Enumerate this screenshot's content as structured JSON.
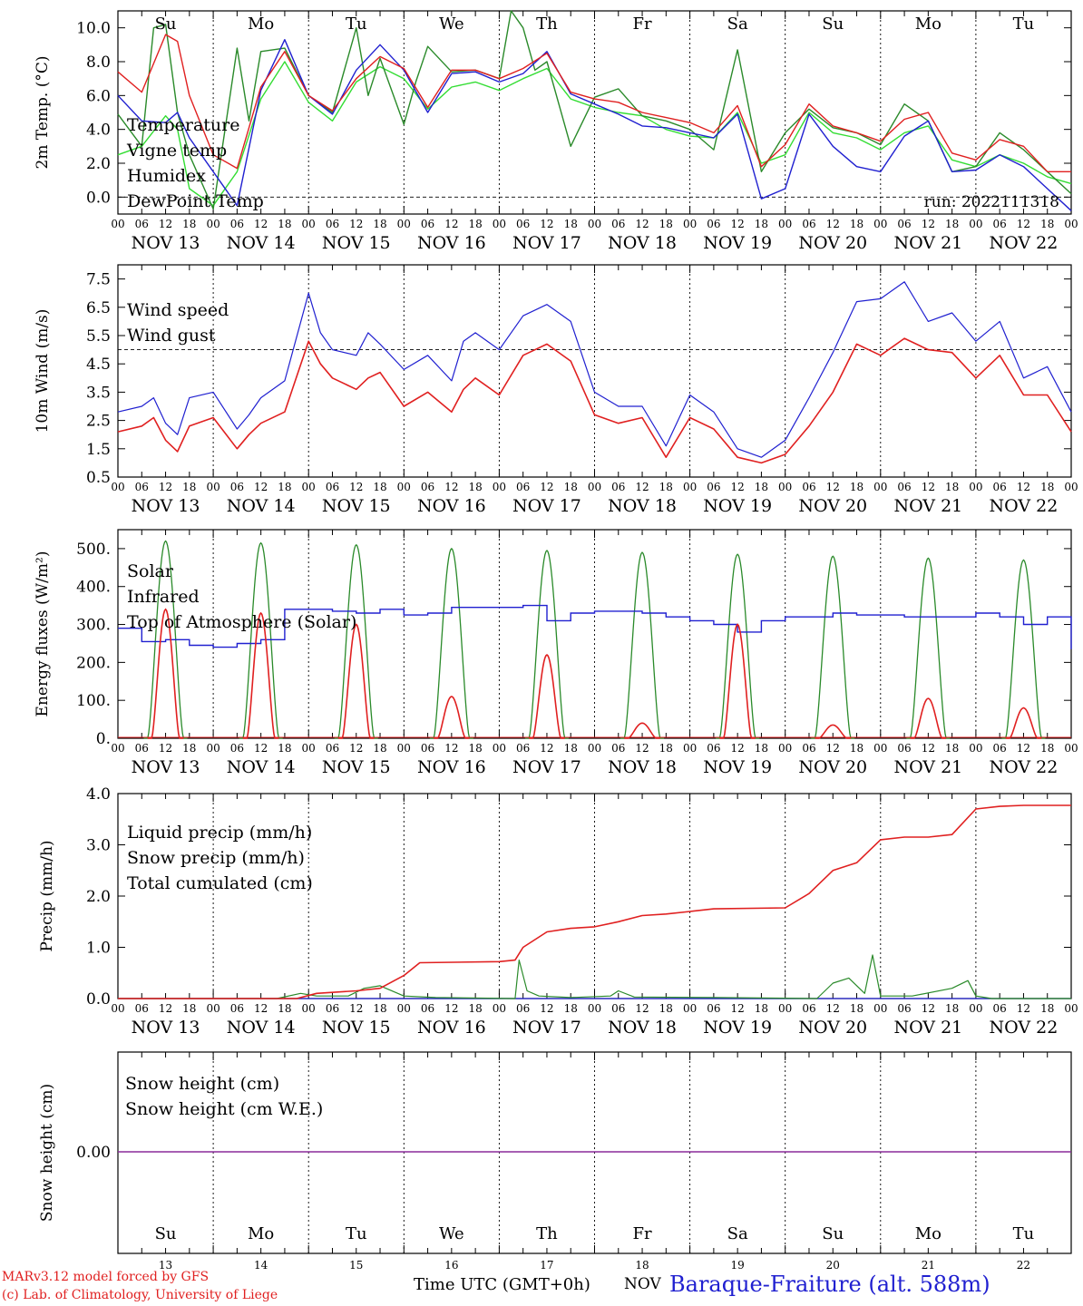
{
  "days": {
    "abbrev": [
      "Su",
      "Mo",
      "Tu",
      "We",
      "Th",
      "Fr",
      "Sa",
      "Su",
      "Mo",
      "Tu"
    ],
    "abbrev_colors": [
      "#e02020",
      "#000000",
      "#000000",
      "#000000",
      "#000000",
      "#000000",
      "#e02020",
      "#e02020",
      "#000000",
      "#000000"
    ],
    "dates": [
      "NOV 13",
      "NOV 14",
      "NOV 15",
      "NOV 16",
      "NOV 17",
      "NOV 18",
      "NOV 19",
      "NOV 20",
      "NOV 21",
      "NOV 22"
    ],
    "day_numbers": [
      "13",
      "14",
      "15",
      "16",
      "17",
      "18",
      "19",
      "20",
      "21",
      "22"
    ],
    "hour_ticks": [
      "00",
      "06",
      "12",
      "18"
    ],
    "end_tick": "00"
  },
  "footer": {
    "model_line": "MARv3.12 model forced by GFS",
    "credit_line": "(c) Lab. of Climatology, University of Liege",
    "xlabel": "Time UTC (GMT+0h)",
    "month": "NOV",
    "station": "Baraque-Fraiture (alt. 588m)"
  },
  "chart_data": [
    {
      "type": "line",
      "ylabel": "2m Temp. (°C)",
      "run_label": "run: 2022111318",
      "ylim": [
        -1.0,
        11.0
      ],
      "yticks": [
        "0.0",
        "2.0",
        "4.0",
        "6.0",
        "8.0",
        "10.0"
      ],
      "reference_line": 0.0,
      "x_unit": "hours since NOV 13 00 UTC",
      "series": [
        {
          "name": "Temperature",
          "color": "#e02020",
          "x": [
            0,
            6,
            12,
            15,
            18,
            24,
            30,
            36,
            42,
            48,
            54,
            60,
            66,
            72,
            78,
            84,
            90,
            96,
            102,
            108,
            114,
            120,
            126,
            132,
            138,
            144,
            150,
            156,
            162,
            168,
            174,
            180,
            186,
            192,
            198,
            204,
            210,
            216,
            222,
            228,
            234,
            240
          ],
          "y": [
            7.4,
            6.2,
            9.6,
            9.2,
            6.0,
            2.5,
            1.7,
            6.5,
            8.6,
            6.0,
            5.1,
            7.0,
            8.3,
            7.6,
            5.3,
            7.5,
            7.5,
            7.0,
            7.6,
            8.5,
            6.2,
            5.8,
            5.6,
            5.0,
            4.7,
            4.4,
            3.8,
            5.4,
            1.8,
            3.1,
            5.5,
            4.2,
            3.8,
            3.3,
            4.6,
            5.0,
            2.6,
            2.2,
            3.4,
            3.0,
            1.5,
            1.5
          ]
        },
        {
          "name": "Vigne temp",
          "color": "#2a8a2a",
          "x": [
            0,
            6,
            9,
            12,
            15,
            18,
            24,
            30,
            33,
            36,
            42,
            48,
            54,
            60,
            63,
            66,
            72,
            75,
            78,
            84,
            90,
            96,
            99,
            102,
            105,
            108,
            114,
            120,
            126,
            132,
            138,
            144,
            150,
            156,
            162,
            168,
            174,
            180,
            186,
            192,
            198,
            204,
            210,
            216,
            222,
            228,
            234,
            240
          ],
          "y": [
            4.9,
            3.0,
            10.0,
            10.2,
            5.0,
            2.5,
            -0.7,
            8.8,
            4.5,
            8.6,
            8.8,
            6.0,
            5.0,
            10.0,
            6.0,
            8.2,
            4.3,
            6.8,
            8.9,
            7.4,
            7.5,
            7.0,
            11.0,
            10.0,
            7.5,
            8.0,
            3.0,
            5.9,
            6.4,
            4.8,
            4.5,
            4.0,
            2.8,
            8.7,
            1.5,
            3.8,
            5.2,
            4.1,
            3.8,
            3.1,
            5.5,
            4.5,
            1.5,
            1.8,
            3.8,
            2.8,
            1.5,
            0.2
          ]
        },
        {
          "name": "Humidex",
          "color": "#2020d0",
          "x": [
            0,
            6,
            12,
            15,
            18,
            24,
            30,
            36,
            42,
            48,
            54,
            60,
            66,
            72,
            78,
            84,
            90,
            96,
            102,
            108,
            114,
            120,
            126,
            132,
            138,
            144,
            150,
            156,
            162,
            168,
            174,
            180,
            186,
            192,
            198,
            204,
            210,
            216,
            222,
            228,
            234,
            240
          ],
          "y": [
            6.0,
            4.5,
            4.4,
            5.0,
            3.5,
            1.5,
            -0.5,
            6.3,
            9.3,
            6.0,
            4.9,
            7.5,
            9.0,
            7.5,
            5.0,
            7.3,
            7.4,
            6.8,
            7.3,
            8.6,
            6.1,
            5.5,
            4.9,
            4.2,
            4.1,
            3.8,
            3.5,
            4.9,
            -0.1,
            0.5,
            4.9,
            3.0,
            1.8,
            1.5,
            3.6,
            4.5,
            1.5,
            1.6,
            2.5,
            1.8,
            0.5,
            -0.8
          ]
        },
        {
          "name": "DewPoint Temp",
          "color": "#33dd33",
          "x": [
            0,
            6,
            12,
            15,
            18,
            24,
            30,
            36,
            42,
            48,
            54,
            60,
            66,
            72,
            78,
            84,
            90,
            96,
            102,
            108,
            114,
            120,
            126,
            132,
            138,
            144,
            150,
            156,
            162,
            168,
            174,
            180,
            186,
            192,
            198,
            204,
            210,
            216,
            222,
            228,
            234,
            240
          ],
          "y": [
            2.5,
            3.0,
            4.8,
            4.0,
            0.5,
            -0.5,
            1.5,
            5.8,
            8.0,
            5.6,
            4.5,
            6.8,
            7.7,
            7.0,
            5.2,
            6.5,
            6.8,
            6.3,
            7.0,
            7.6,
            5.8,
            5.3,
            5.0,
            4.8,
            4.0,
            3.6,
            3.5,
            5.0,
            2.0,
            2.5,
            5.0,
            3.8,
            3.5,
            2.8,
            3.8,
            4.2,
            2.2,
            1.8,
            2.5,
            2.0,
            1.2,
            0.8
          ]
        }
      ]
    },
    {
      "type": "line",
      "ylabel": "10m Wind (m/s)",
      "ylim": [
        0.5,
        8.0
      ],
      "yticks": [
        "0.5",
        "1.5",
        "2.5",
        "3.5",
        "4.5",
        "5.5",
        "6.5",
        "7.5"
      ],
      "reference_line": 5.0,
      "x_unit": "hours since NOV 13 00 UTC",
      "series": [
        {
          "name": "Wind speed",
          "color": "#e02020",
          "x": [
            0,
            6,
            9,
            12,
            15,
            18,
            24,
            30,
            33,
            36,
            42,
            48,
            51,
            54,
            60,
            63,
            66,
            72,
            78,
            84,
            87,
            90,
            96,
            102,
            108,
            114,
            120,
            126,
            132,
            138,
            144,
            150,
            156,
            162,
            168,
            174,
            180,
            186,
            192,
            198,
            204,
            210,
            216,
            222,
            228,
            234,
            240
          ],
          "y": [
            2.1,
            2.3,
            2.6,
            1.8,
            1.4,
            2.3,
            2.6,
            1.5,
            2.0,
            2.4,
            2.8,
            5.3,
            4.5,
            4.0,
            3.6,
            4.0,
            4.2,
            3.0,
            3.5,
            2.8,
            3.6,
            4.0,
            3.4,
            4.8,
            5.2,
            4.6,
            2.7,
            2.4,
            2.6,
            1.2,
            2.6,
            2.2,
            1.2,
            1.0,
            1.3,
            2.3,
            3.5,
            5.2,
            4.8,
            5.4,
            5.0,
            4.9,
            4.0,
            4.8,
            3.4,
            3.4,
            2.1
          ]
        },
        {
          "name": "Wind gust",
          "color": "#2020d0",
          "x": [
            0,
            6,
            9,
            12,
            15,
            18,
            24,
            30,
            33,
            36,
            42,
            48,
            51,
            54,
            60,
            63,
            66,
            72,
            78,
            84,
            87,
            90,
            96,
            102,
            108,
            114,
            120,
            126,
            132,
            138,
            144,
            150,
            156,
            162,
            168,
            174,
            180,
            186,
            192,
            198,
            204,
            210,
            216,
            222,
            228,
            234,
            240
          ],
          "y": [
            2.8,
            3.0,
            3.3,
            2.4,
            2.0,
            3.3,
            3.5,
            2.2,
            2.7,
            3.3,
            3.9,
            7.0,
            5.6,
            5.0,
            4.8,
            5.6,
            5.2,
            4.3,
            4.8,
            3.9,
            5.3,
            5.6,
            5.0,
            6.2,
            6.6,
            6.0,
            3.5,
            3.0,
            3.0,
            1.6,
            3.4,
            2.8,
            1.5,
            1.2,
            1.8,
            3.3,
            4.9,
            6.7,
            6.8,
            7.4,
            6.0,
            6.3,
            5.3,
            6.0,
            4.0,
            4.4,
            2.8
          ]
        }
      ]
    },
    {
      "type": "line",
      "ylabel": "Energy fluxes (W/m²)",
      "ylim": [
        0,
        550
      ],
      "yticks": [
        "0.",
        "100.",
        "200.",
        "300.",
        "400.",
        "500."
      ],
      "x_unit": "hours since NOV 13 00 UTC",
      "solar_peaks": [
        340,
        330,
        300,
        110,
        220,
        40,
        300,
        35,
        105,
        80
      ],
      "toa_peaks": [
        520,
        515,
        510,
        500,
        495,
        490,
        485,
        480,
        475,
        470
      ],
      "series": [
        {
          "name": "Solar",
          "color": "#e02020"
        },
        {
          "name": "Infrared",
          "color": "#2020d0",
          "x": [
            0,
            6,
            12,
            18,
            24,
            30,
            36,
            42,
            48,
            54,
            60,
            66,
            72,
            78,
            84,
            90,
            96,
            102,
            108,
            114,
            120,
            126,
            132,
            138,
            144,
            150,
            156,
            162,
            168,
            174,
            180,
            186,
            192,
            198,
            204,
            210,
            216,
            222,
            228,
            234,
            240
          ],
          "y": [
            290,
            255,
            260,
            245,
            240,
            250,
            260,
            340,
            340,
            335,
            330,
            340,
            325,
            330,
            345,
            345,
            345,
            350,
            310,
            330,
            335,
            335,
            330,
            320,
            310,
            300,
            280,
            310,
            320,
            320,
            330,
            325,
            325,
            320,
            320,
            320,
            330,
            320,
            300,
            320,
            235
          ]
        },
        {
          "name": "Top of Atmosphere (Solar)",
          "color": "#2a8a2a"
        }
      ]
    },
    {
      "type": "line",
      "ylabel": "Precip (mm/h)",
      "ylim": [
        0,
        4.0
      ],
      "yticks": [
        "0.0",
        "1.0",
        "2.0",
        "3.0",
        "4.0"
      ],
      "x_unit": "hours since NOV 13 00 UTC",
      "series": [
        {
          "name": "Liquid precip (mm/h)",
          "color": "#2a8a2a",
          "x": [
            0,
            40,
            46,
            50,
            58,
            62,
            66,
            72,
            80,
            100,
            101,
            103,
            106,
            114,
            124,
            126,
            130,
            150,
            176,
            180,
            184,
            188,
            190,
            192,
            200,
            210,
            214,
            216,
            220,
            240
          ],
          "y": [
            0,
            0,
            0.1,
            0.05,
            0.05,
            0.2,
            0.25,
            0.05,
            0.02,
            0,
            0.75,
            0.15,
            0.05,
            0.02,
            0.05,
            0.15,
            0.03,
            0.02,
            0,
            0.3,
            0.4,
            0.1,
            0.85,
            0.05,
            0.05,
            0.2,
            0.35,
            0.05,
            0,
            0
          ]
        },
        {
          "name": "Snow precip (mm/h)",
          "color": "#2020d0",
          "x": [
            0,
            240
          ],
          "y": [
            0,
            0
          ]
        },
        {
          "name": "Total cumulated (cm)",
          "color": "#e02020",
          "x": [
            0,
            45,
            50,
            60,
            66,
            72,
            76,
            96,
            100,
            102,
            108,
            114,
            120,
            126,
            132,
            138,
            144,
            150,
            168,
            174,
            180,
            186,
            192,
            198,
            204,
            210,
            216,
            222,
            228,
            240
          ],
          "y": [
            0,
            0,
            0.1,
            0.15,
            0.2,
            0.45,
            0.7,
            0.72,
            0.75,
            1.0,
            1.3,
            1.37,
            1.4,
            1.5,
            1.62,
            1.65,
            1.7,
            1.75,
            1.77,
            2.05,
            2.5,
            2.65,
            3.1,
            3.15,
            3.15,
            3.2,
            3.7,
            3.75,
            3.77,
            3.77
          ]
        }
      ]
    },
    {
      "type": "line",
      "ylabel": "Snow height (cm)",
      "yticks": [
        "0.00"
      ],
      "x_unit": "hours since NOV 13 00 UTC",
      "series": [
        {
          "name": "Snow height (cm)",
          "color": "#e02020",
          "x": [
            0,
            240
          ],
          "y": [
            0,
            0
          ]
        },
        {
          "name": "Snow height (cm W.E.)",
          "color": "#2020d0",
          "x": [
            0,
            240
          ],
          "y": [
            0,
            0
          ]
        }
      ]
    }
  ]
}
